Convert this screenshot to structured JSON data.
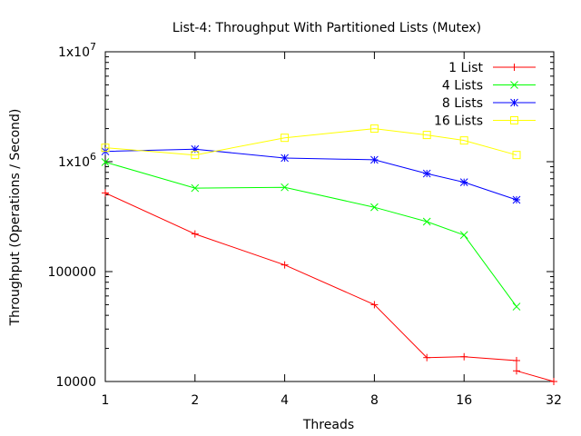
{
  "chart_data": {
    "type": "line",
    "title": "List-4: Throughput With Partitioned Lists (Mutex)",
    "xlabel": "Threads",
    "ylabel": "Throughput (Operations / Second)",
    "x_scale": "log2",
    "y_scale": "log10",
    "xlim": [
      1,
      32
    ],
    "ylim": [
      10000,
      10000000
    ],
    "x_ticks": [
      {
        "value": 1,
        "label": "1"
      },
      {
        "value": 2,
        "label": "2"
      },
      {
        "value": 4,
        "label": "4"
      },
      {
        "value": 8,
        "label": "8"
      },
      {
        "value": 16,
        "label": "16"
      },
      {
        "value": 32,
        "label": "32"
      }
    ],
    "y_ticks": [
      {
        "value": 10000,
        "label": "10000",
        "base": "10000",
        "exp": ""
      },
      {
        "value": 100000,
        "label": "100000",
        "base": "100000",
        "exp": ""
      },
      {
        "value": 1000000,
        "label": "1x10^6",
        "base": "1x10",
        "exp": "6"
      },
      {
        "value": 10000000,
        "label": "1x10^7",
        "base": "1x10",
        "exp": "7"
      }
    ],
    "grid": false,
    "legend_position": "top-right",
    "series": [
      {
        "name": "1 List",
        "color": "#ff0000",
        "marker": "plus",
        "points": [
          [
            1,
            520000
          ],
          [
            2,
            220000
          ],
          [
            4,
            115000
          ],
          [
            8,
            50000
          ],
          [
            12,
            16500
          ],
          [
            16,
            16800
          ],
          [
            24,
            15500
          ],
          [
            24,
            12500
          ],
          [
            32,
            10000
          ]
        ]
      },
      {
        "name": "4 Lists",
        "color": "#00ff00",
        "marker": "cross",
        "points": [
          [
            1,
            990000
          ],
          [
            2,
            575000
          ],
          [
            4,
            585000
          ],
          [
            8,
            385000
          ],
          [
            12,
            285000
          ],
          [
            16,
            215000
          ],
          [
            24,
            48000
          ]
        ]
      },
      {
        "name": "8 Lists",
        "color": "#0000ff",
        "marker": "star",
        "points": [
          [
            1,
            1240000
          ],
          [
            2,
            1300000
          ],
          [
            4,
            1080000
          ],
          [
            8,
            1040000
          ],
          [
            12,
            780000
          ],
          [
            16,
            650000
          ],
          [
            24,
            450000
          ]
        ]
      },
      {
        "name": "16 Lists",
        "color": "#ffff00",
        "marker": "square",
        "points": [
          [
            1,
            1340000
          ],
          [
            2,
            1150000
          ],
          [
            4,
            1650000
          ],
          [
            8,
            2000000
          ],
          [
            12,
            1750000
          ],
          [
            16,
            1560000
          ],
          [
            24,
            1150000
          ]
        ]
      }
    ]
  }
}
